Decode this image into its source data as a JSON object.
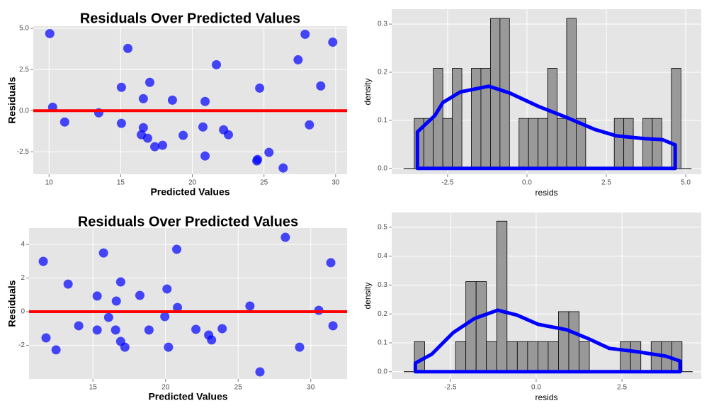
{
  "chart_data": [
    {
      "type": "scatter",
      "title": "Residuals Over Predicted Values",
      "x_label": "Predicted Values",
      "y_label": "Residuals",
      "x": [
        10.05,
        10.25,
        11.09,
        13.47,
        15.05,
        15.05,
        15.5,
        16.58,
        16.58,
        16.44,
        16.88,
        17.03,
        17.38,
        17.92,
        18.61,
        19.36,
        20.74,
        20.89,
        20.89,
        21.68,
        22.18,
        22.52,
        24.5,
        24.55,
        24.7,
        25.35,
        26.34,
        27.38,
        27.87,
        28.17,
        28.96,
        29.8
      ],
      "values": [
        4.68,
        0.21,
        -0.69,
        -0.13,
        1.42,
        -0.77,
        3.78,
        0.73,
        -1.03,
        -1.46,
        -1.67,
        1.72,
        -2.19,
        -2.1,
        0.64,
        -1.5,
        -0.99,
        0.56,
        -2.75,
        2.79,
        -1.16,
        -1.46,
        -3.05,
        -2.96,
        1.37,
        -2.53,
        -3.48,
        3.09,
        4.64,
        -0.86,
        1.5,
        4.16
      ],
      "color": "#0000ff",
      "hline": {
        "y": 0,
        "color": "#ff0000"
      },
      "xlim": [
        8.9,
        30.8
      ],
      "ylim": [
        -3.86,
        5.13
      ],
      "xticks": [
        10,
        15,
        20,
        25,
        30
      ],
      "yticks": [
        {
          "value": -2.5,
          "label": "-2.5"
        },
        {
          "value": 0,
          "label": "0.0"
        },
        2.5,
        {
          "value": 5,
          "label": "5.0"
        }
      ]
    },
    {
      "type": "histogram",
      "x_label": "resids",
      "y_label": "density",
      "bins": [
        -3.55,
        -3.25,
        -2.95,
        -2.65,
        -2.35,
        -2.05,
        -1.75,
        -1.45,
        -1.15,
        -0.85,
        -0.55,
        -0.25,
        0.05,
        0.35,
        0.65,
        0.95,
        1.25,
        1.55,
        1.85,
        2.15,
        2.45,
        2.75,
        3.05,
        3.35,
        3.65,
        3.95,
        4.25,
        4.55,
        4.85
      ],
      "values": [
        0.104,
        0.104,
        0.208,
        0.104,
        0.208,
        0,
        0.208,
        0.208,
        0.312,
        0.312,
        0,
        0.104,
        0.104,
        0.104,
        0.208,
        0.104,
        0.312,
        0.104,
        0,
        0,
        0,
        0.104,
        0.104,
        0,
        0.104,
        0.104,
        0,
        0.208
      ],
      "color": "#999999",
      "density": {
        "color": "#0000ff",
        "x": [
          -3.45,
          -3.45,
          -2.9,
          -2.65,
          -2.1,
          -1.2,
          -0.55,
          0.36,
          1.25,
          2.14,
          2.81,
          3.71,
          4.26,
          4.67,
          4.67
        ],
        "values": [
          0,
          0.076,
          0.11,
          0.137,
          0.159,
          0.171,
          0.157,
          0.129,
          0.106,
          0.081,
          0.068,
          0.062,
          0.06,
          0.049,
          0
        ]
      },
      "xlim": [
        -4.26,
        5.49
      ],
      "ylim": [
        -0.012,
        0.331
      ],
      "xticks": [
        -2.5,
        {
          "value": 0,
          "label": "0.0"
        },
        2.5,
        {
          "value": 5,
          "label": "5.0"
        }
      ],
      "yticks": [
        {
          "value": 0,
          "label": "0.0"
        },
        0.1,
        0.2,
        0.3
      ]
    },
    {
      "type": "scatter",
      "title": "Residuals Over Predicted Values",
      "x_label": "Predicted Values",
      "y_label": "Residuals",
      "x": [
        11.58,
        11.77,
        12.46,
        13.29,
        14.02,
        15.29,
        15.29,
        15.73,
        16.08,
        16.56,
        16.61,
        16.91,
        16.91,
        17.2,
        18.23,
        18.86,
        19.95,
        20.1,
        20.2,
        20.77,
        20.82,
        22.09,
        22.97,
        23.17,
        23.9,
        25.81,
        26.5,
        28.25,
        29.23,
        30.55,
        31.38,
        31.53
      ],
      "values": [
        2.99,
        -1.56,
        -2.27,
        1.64,
        -0.84,
        0.93,
        -1.09,
        3.49,
        -0.34,
        -1.09,
        0.63,
        1.77,
        -1.77,
        -2.11,
        0.97,
        -1.09,
        -0.29,
        1.35,
        -2.11,
        3.71,
        0.25,
        -1.05,
        -1.39,
        -1.68,
        -1.01,
        0.34,
        -3.58,
        4.42,
        -2.11,
        0.08,
        2.91,
        -0.84
      ],
      "color": "#0000ff",
      "hline": {
        "y": 0,
        "color": "#ff0000"
      },
      "xlim": [
        10.6,
        32.5
      ],
      "ylim": [
        -4.0,
        4.97
      ],
      "xticks": [
        15,
        20,
        25,
        30
      ],
      "yticks": [
        -2,
        0,
        2,
        4
      ]
    },
    {
      "type": "histogram",
      "x_label": "resids",
      "y_label": "density",
      "bins": [
        -3.55,
        -3.25,
        -2.95,
        -2.65,
        -2.35,
        -2.05,
        -1.75,
        -1.45,
        -1.15,
        -0.85,
        -0.55,
        -0.25,
        0.05,
        0.35,
        0.65,
        0.95,
        1.25,
        1.55,
        1.85,
        2.15,
        2.45,
        2.75,
        3.05,
        3.35,
        3.65,
        3.95,
        4.25
      ],
      "values": [
        0.104,
        0,
        0,
        0,
        0.104,
        0.312,
        0.312,
        0.104,
        0.521,
        0.104,
        0.104,
        0.104,
        0.104,
        0.104,
        0.208,
        0.208,
        0.104,
        0,
        0,
        0,
        0.104,
        0.104,
        0,
        0.104,
        0.104,
        0.104
      ],
      "color": "#999999",
      "density": {
        "color": "#0000ff",
        "x": [
          -3.52,
          -3.52,
          -3.04,
          -2.42,
          -1.8,
          -1.12,
          -0.56,
          0.06,
          0.89,
          1.51,
          2.13,
          2.95,
          3.78,
          4.19,
          4.19
        ],
        "values": [
          0,
          0.03,
          0.061,
          0.135,
          0.184,
          0.213,
          0.196,
          0.164,
          0.145,
          0.115,
          0.081,
          0.069,
          0.054,
          0.037,
          0
        ]
      },
      "xlim": [
        -4.21,
        4.81
      ],
      "ylim": [
        -0.025,
        0.551
      ],
      "xticks": [
        -2.5,
        {
          "value": 0,
          "label": "0.0"
        },
        2.5
      ],
      "yticks": [
        {
          "value": 0,
          "label": "0.0"
        },
        0.1,
        0.2,
        0.3,
        0.4,
        0.5
      ]
    }
  ]
}
